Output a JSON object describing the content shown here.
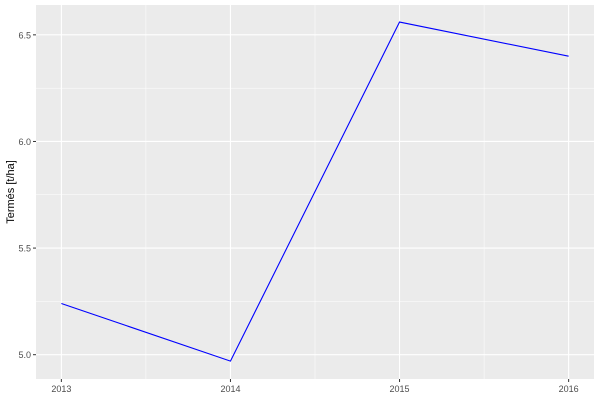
{
  "chart_data": {
    "type": "line",
    "title": "",
    "xlabel": "",
    "ylabel": "Termés [t/ha]",
    "x": [
      2013,
      2014,
      2015,
      2016
    ],
    "series": [
      {
        "values": [
          5.24,
          4.97,
          6.56,
          6.4
        ],
        "color": "#0000ff"
      }
    ],
    "xticks": [
      "2013",
      "2014",
      "2015",
      "2016"
    ],
    "yticks": [
      "5.0",
      "5.5",
      "6.0",
      "6.5"
    ],
    "xlim": [
      2012.85,
      2016.15
    ],
    "ylim": [
      4.886,
      6.64
    ],
    "grid": true,
    "panel_background": "#ebebeb"
  }
}
